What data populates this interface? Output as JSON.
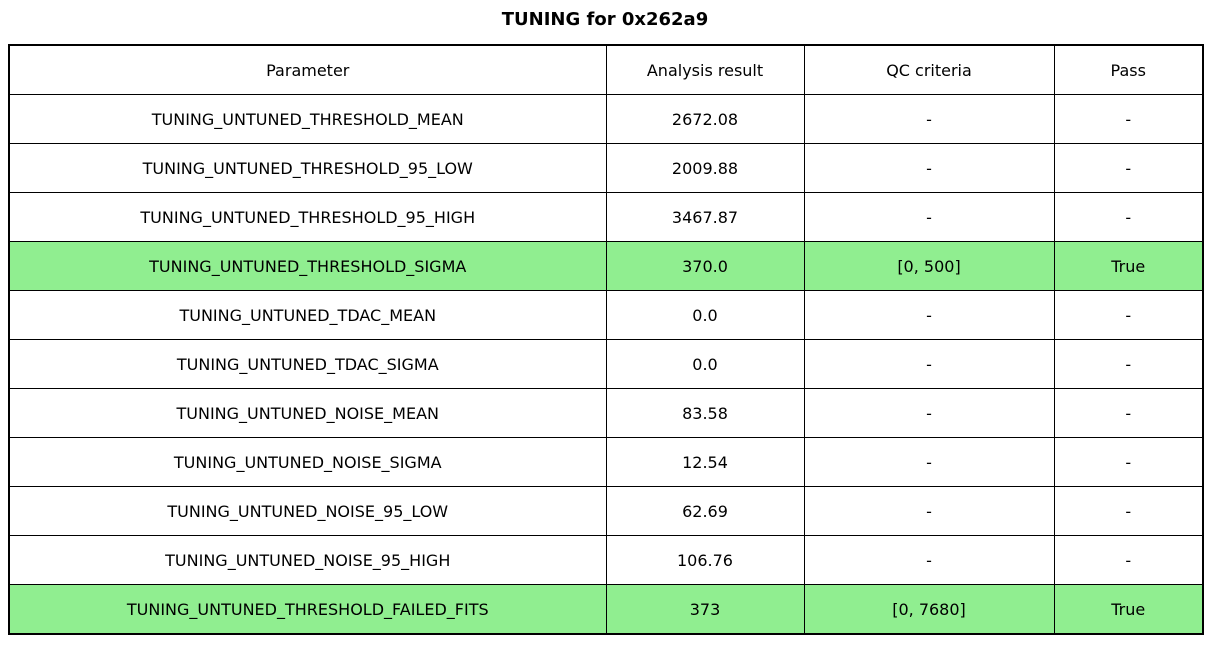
{
  "chart_data": {
    "type": "table",
    "title": "TUNING for 0x262a9",
    "columns": [
      "Parameter",
      "Analysis result",
      "QC criteria",
      "Pass"
    ],
    "rows": [
      {
        "cells": [
          "TUNING_UNTUNED_THRESHOLD_MEAN",
          "2672.08",
          "-",
          "-"
        ],
        "highlight": false
      },
      {
        "cells": [
          "TUNING_UNTUNED_THRESHOLD_95_LOW",
          "2009.88",
          "-",
          "-"
        ],
        "highlight": false
      },
      {
        "cells": [
          "TUNING_UNTUNED_THRESHOLD_95_HIGH",
          "3467.87",
          "-",
          "-"
        ],
        "highlight": false
      },
      {
        "cells": [
          "TUNING_UNTUNED_THRESHOLD_SIGMA",
          "370.0",
          "[0, 500]",
          "True"
        ],
        "highlight": true
      },
      {
        "cells": [
          "TUNING_UNTUNED_TDAC_MEAN",
          "0.0",
          "-",
          "-"
        ],
        "highlight": false
      },
      {
        "cells": [
          "TUNING_UNTUNED_TDAC_SIGMA",
          "0.0",
          "-",
          "-"
        ],
        "highlight": false
      },
      {
        "cells": [
          "TUNING_UNTUNED_NOISE_MEAN",
          "83.58",
          "-",
          "-"
        ],
        "highlight": false
      },
      {
        "cells": [
          "TUNING_UNTUNED_NOISE_SIGMA",
          "12.54",
          "-",
          "-"
        ],
        "highlight": false
      },
      {
        "cells": [
          "TUNING_UNTUNED_NOISE_95_LOW",
          "62.69",
          "-",
          "-"
        ],
        "highlight": false
      },
      {
        "cells": [
          "TUNING_UNTUNED_NOISE_95_HIGH",
          "106.76",
          "-",
          "-"
        ],
        "highlight": false
      },
      {
        "cells": [
          "TUNING_UNTUNED_THRESHOLD_FAILED_FITS",
          "373",
          "[0, 7680]",
          "True"
        ],
        "highlight": true
      }
    ],
    "highlight_color": "#90ee90",
    "layout": {
      "border_color": "#000000",
      "background": "#ffffff",
      "legend": "none",
      "grid": "full-cell-borders"
    }
  }
}
